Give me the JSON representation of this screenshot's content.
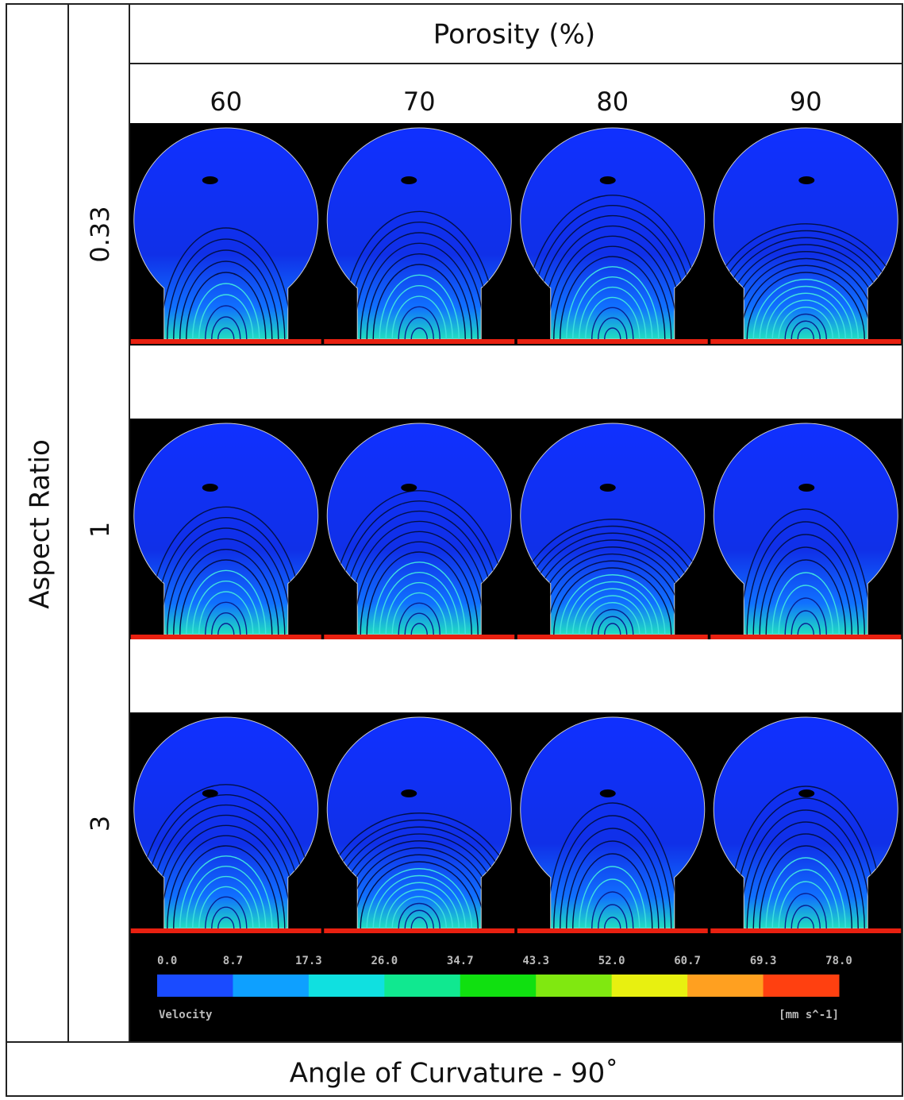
{
  "header": {
    "title": "Porosity (%)",
    "columns": [
      "60",
      "70",
      "80",
      "90"
    ]
  },
  "side": {
    "title": "Aspect Ratio",
    "rows": [
      "0.33",
      "1",
      "3"
    ]
  },
  "footer": "Angle of Curvature - 90˚",
  "colorbar": {
    "ticks": [
      "0.0",
      "8.7",
      "17.3",
      "26.0",
      "34.7",
      "43.3",
      "52.0",
      "60.7",
      "69.3",
      "78.0"
    ],
    "colors": [
      "#1a4bff",
      "#0ea0ff",
      "#10e0e0",
      "#10e890",
      "#10e010",
      "#80e810",
      "#e8f010",
      "#ffa020",
      "#ff4010"
    ],
    "label": "Velocity",
    "unit": "[mm s^-1]"
  }
}
